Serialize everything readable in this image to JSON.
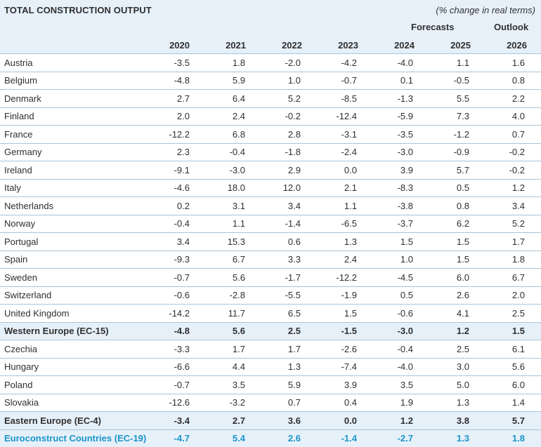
{
  "table": {
    "title": "TOTAL CONSTRUCTION OUTPUT",
    "subtitle": "(% change in real terms)",
    "group_headers": {
      "forecasts": "Forecasts",
      "outlook": "Outlook"
    },
    "years": [
      "2020",
      "2021",
      "2022",
      "2023",
      "2024",
      "2025",
      "2026"
    ],
    "rows": [
      {
        "country": "Austria",
        "values": [
          "-3.5",
          "1.8",
          "-2.0",
          "-4.2",
          "-4.0",
          "1.1",
          "1.6"
        ]
      },
      {
        "country": "Belgium",
        "values": [
          "-4.8",
          "5.9",
          "1.0",
          "-0.7",
          "0.1",
          "-0.5",
          "0.8"
        ]
      },
      {
        "country": "Denmark",
        "values": [
          "2.7",
          "6.4",
          "5.2",
          "-8.5",
          "-1.3",
          "5.5",
          "2.2"
        ]
      },
      {
        "country": "Finland",
        "values": [
          "2.0",
          "2.4",
          "-0.2",
          "-12.4",
          "-5.9",
          "7.3",
          "4.0"
        ]
      },
      {
        "country": "France",
        "values": [
          "-12.2",
          "6.8",
          "2.8",
          "-3.1",
          "-3.5",
          "-1.2",
          "0.7"
        ]
      },
      {
        "country": "Germany",
        "values": [
          "2.3",
          "-0.4",
          "-1.8",
          "-2.4",
          "-3.0",
          "-0.9",
          "-0.2"
        ]
      },
      {
        "country": "Ireland",
        "values": [
          "-9.1",
          "-3.0",
          "2.9",
          "0.0",
          "3.9",
          "5.7",
          "-0.2"
        ]
      },
      {
        "country": "Italy",
        "values": [
          "-4.6",
          "18.0",
          "12.0",
          "2.1",
          "-8.3",
          "0.5",
          "1.2"
        ]
      },
      {
        "country": "Netherlands",
        "values": [
          "0.2",
          "3.1",
          "3.4",
          "1.1",
          "-3.8",
          "0.8",
          "3.4"
        ]
      },
      {
        "country": "Norway",
        "values": [
          "-0.4",
          "1.1",
          "-1.4",
          "-6.5",
          "-3.7",
          "6.2",
          "5.2"
        ]
      },
      {
        "country": "Portugal",
        "values": [
          "3.4",
          "15.3",
          "0.6",
          "1.3",
          "1.5",
          "1.5",
          "1.7"
        ]
      },
      {
        "country": "Spain",
        "values": [
          "-9.3",
          "6.7",
          "3.3",
          "2.4",
          "1.0",
          "1.5",
          "1.8"
        ]
      },
      {
        "country": "Sweden",
        "values": [
          "-0.7",
          "5.6",
          "-1.7",
          "-12.2",
          "-4.5",
          "6.0",
          "6.7"
        ]
      },
      {
        "country": "Switzerland",
        "values": [
          "-0.6",
          "-2.8",
          "-5.5",
          "-1.9",
          "0.5",
          "2.6",
          "2.0"
        ]
      },
      {
        "country": "United Kingdom",
        "values": [
          "-14.2",
          "11.7",
          "6.5",
          "1.5",
          "-0.6",
          "4.1",
          "2.5"
        ]
      },
      {
        "country": "Western Europe (EC-15)",
        "values": [
          "-4.8",
          "5.6",
          "2.5",
          "-1.5",
          "-3.0",
          "1.2",
          "1.5"
        ],
        "subtotal": true
      },
      {
        "country": "Czechia",
        "values": [
          "-3.3",
          "1.7",
          "1.7",
          "-2.6",
          "-0.4",
          "2.5",
          "6.1"
        ]
      },
      {
        "country": "Hungary",
        "values": [
          "-6.6",
          "4.4",
          "1.3",
          "-7.4",
          "-4.0",
          "3.0",
          "5.6"
        ]
      },
      {
        "country": "Poland",
        "values": [
          "-0.7",
          "3.5",
          "5.9",
          "3.9",
          "3.5",
          "5.0",
          "6.0"
        ]
      },
      {
        "country": "Slovakia",
        "values": [
          "-12.6",
          "-3.2",
          "0.7",
          "0.4",
          "1.9",
          "1.3",
          "1.4"
        ]
      },
      {
        "country": "Eastern Europe (EC-4)",
        "values": [
          "-3.4",
          "2.7",
          "3.6",
          "0.0",
          "1.2",
          "3.8",
          "5.7"
        ],
        "subtotal": true
      },
      {
        "country": "Euroconstruct Countries (EC-19)",
        "values": [
          "-4.7",
          "5.4",
          "2.6",
          "-1.4",
          "-2.7",
          "1.3",
          "1.8"
        ],
        "subtotal": true,
        "highlight": true
      }
    ],
    "colors": {
      "header_bg": "#e6f0f9",
      "grid_line": "#a9c4da",
      "ec19_text": "#1a95c9"
    }
  }
}
